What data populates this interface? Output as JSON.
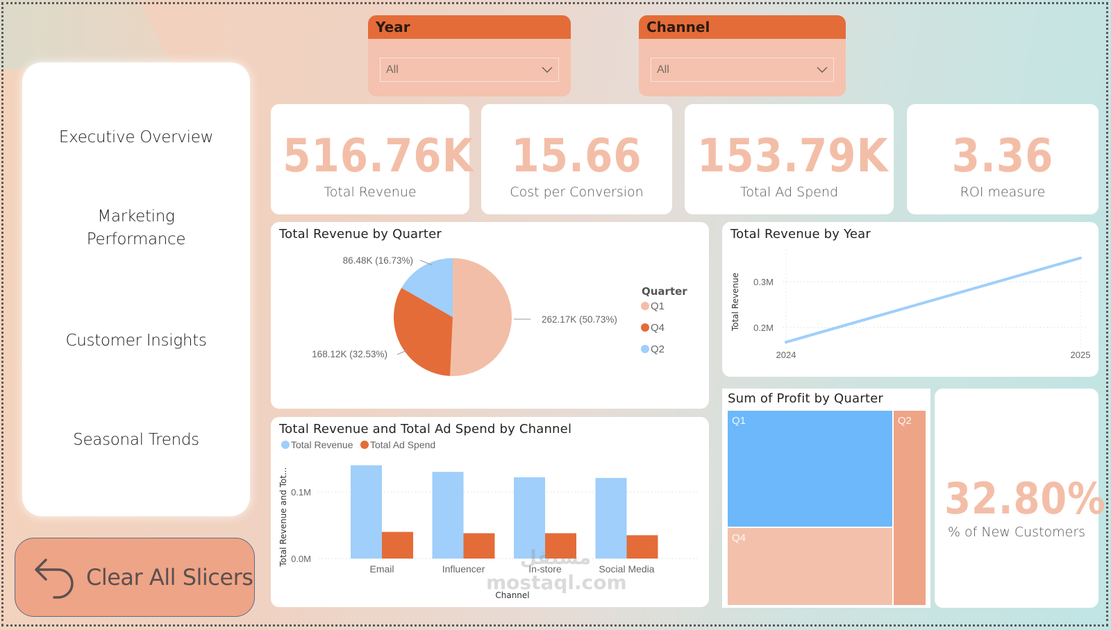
{
  "sidebar": {
    "items": [
      {
        "label": "Executive Overview"
      },
      {
        "label_line1": "Marketing",
        "label_line2": "Performance"
      },
      {
        "label": "Customer Insights"
      },
      {
        "label": "Seasonal Trends"
      }
    ]
  },
  "clear_button": {
    "label": "Clear All Slicers",
    "icon": "undo-arrow-icon"
  },
  "slicers": {
    "year": {
      "title": "Year",
      "value": "All"
    },
    "channel": {
      "title": "Channel",
      "value": "All"
    }
  },
  "kpis": [
    {
      "value": "516.76K",
      "label": "Total Revenue"
    },
    {
      "value": "15.66",
      "label": "Cost per Conversion"
    },
    {
      "value": "153.79K",
      "label": "Total Ad Spend"
    },
    {
      "value": "3.36",
      "label": "ROI measure"
    }
  ],
  "new_customers": {
    "value": "32.80%",
    "label": "% of New Customers"
  },
  "colors": {
    "accent_orange": "#e46c38",
    "peach": "#f3bea8",
    "light_blue": "#9fcffa",
    "treemap_blue": "#6cb8fb",
    "treemap_q2": "#eea486"
  },
  "watermark": {
    "arabic": "مستقل",
    "latin": "mostaql.com"
  },
  "chart_data": [
    {
      "type": "pie",
      "title": "Total Revenue by Quarter",
      "legend_title": "Quarter",
      "legend_position": "right",
      "slices": [
        {
          "name": "Q1",
          "value": 262.17,
          "percent": 50.73,
          "label": "262.17K (50.73%)",
          "color": "#f3bea8"
        },
        {
          "name": "Q4",
          "value": 168.12,
          "percent": 32.53,
          "label": "168.12K (32.53%)",
          "color": "#e46c38"
        },
        {
          "name": "Q2",
          "value": 86.48,
          "percent": 16.73,
          "label": "86.48K (16.73%)",
          "color": "#9fcffa"
        }
      ]
    },
    {
      "type": "line",
      "title": "Total Revenue by Year",
      "xlabel": "",
      "ylabel": "Total Revenue",
      "x": [
        "2024",
        "2025"
      ],
      "series": [
        {
          "name": "Total Revenue",
          "values": [
            0.168,
            0.352
          ],
          "color": "#9fcffa"
        }
      ],
      "yticks": [
        {
          "v": 0.2,
          "label": "0.2M"
        },
        {
          "v": 0.3,
          "label": "0.3M"
        }
      ],
      "ylim": [
        0.15,
        0.37
      ],
      "grid": true
    },
    {
      "type": "bar",
      "title": "Total Revenue and Total Ad Spend by Channel",
      "xlabel": "Channel",
      "ylabel": "Total Revenue and Tot...",
      "categories": [
        "Email",
        "Influencer",
        "In-store",
        "Social Media"
      ],
      "series": [
        {
          "name": "Total Revenue",
          "values": [
            0.14,
            0.13,
            0.122,
            0.121
          ],
          "color": "#9fcffa"
        },
        {
          "name": "Total Ad Spend",
          "values": [
            0.04,
            0.038,
            0.038,
            0.035
          ],
          "color": "#e46c38"
        }
      ],
      "yticks": [
        {
          "v": 0.0,
          "label": "0.0M"
        },
        {
          "v": 0.1,
          "label": "0.1M"
        }
      ],
      "ylim": [
        0,
        0.15
      ],
      "legend_position": "top-left",
      "grid": true
    },
    {
      "type": "treemap",
      "title": "Sum of Profit by Quarter",
      "items": [
        {
          "name": "Q1",
          "share": 0.507,
          "color": "#6cb8fb"
        },
        {
          "name": "Q4",
          "share": 0.331,
          "color": "#f3c1ab"
        },
        {
          "name": "Q2",
          "share": 0.162,
          "color": "#eea486"
        }
      ]
    }
  ]
}
